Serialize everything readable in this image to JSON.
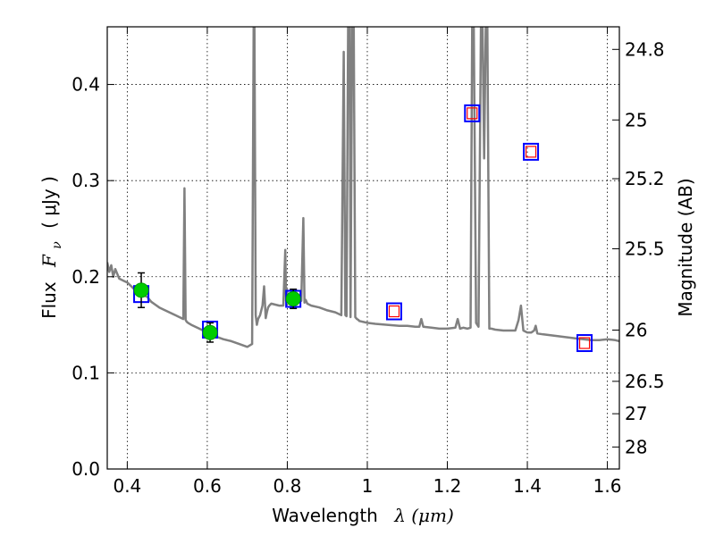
{
  "chart_data": {
    "type": "line",
    "title": "",
    "xlabel": "Wavelength",
    "xlabel_math": "λ (μm)",
    "ylabel": "Flux",
    "ylabel_math": "F",
    "ylabel_sub": "ν",
    "ylabel_units": "( μJy )",
    "y2label": "Magnitude (AB)",
    "xlim": [
      0.35,
      1.63
    ],
    "ylim": [
      0.0,
      0.46
    ],
    "grid": true,
    "x_ticks": [
      0.4,
      0.6,
      0.8,
      1.0,
      1.2,
      1.4,
      1.6
    ],
    "x_tick_labels": [
      "0.4",
      "0.6",
      "0.8",
      "1",
      "1.2",
      "1.4",
      "1.6"
    ],
    "y_ticks": [
      0.0,
      0.1,
      0.2,
      0.3,
      0.4
    ],
    "y_tick_labels": [
      "0.0",
      "0.1",
      "0.2",
      "0.3",
      "0.4"
    ],
    "y2_ticks": [
      {
        "label": "24.8",
        "flux": 0.4365
      },
      {
        "label": "25",
        "flux": 0.3631
      },
      {
        "label": "25.2",
        "flux": 0.302
      },
      {
        "label": "25.5",
        "flux": 0.2291
      },
      {
        "label": "26",
        "flux": 0.1445
      },
      {
        "label": "26.5",
        "flux": 0.0912
      },
      {
        "label": "27",
        "flux": 0.0575
      },
      {
        "label": "28",
        "flux": 0.0229
      }
    ],
    "series": [
      {
        "name": "model spectrum",
        "kind": "line",
        "color": "#808080",
        "x": [
          0.35,
          0.355,
          0.36,
          0.365,
          0.37,
          0.38,
          0.39,
          0.4,
          0.41,
          0.42,
          0.43,
          0.44,
          0.45,
          0.46,
          0.47,
          0.48,
          0.5,
          0.52,
          0.54,
          0.543,
          0.546,
          0.549,
          0.552,
          0.56,
          0.58,
          0.6,
          0.62,
          0.64,
          0.66,
          0.68,
          0.7,
          0.712,
          0.716,
          0.718,
          0.721,
          0.724,
          0.727,
          0.732,
          0.738,
          0.742,
          0.746,
          0.749,
          0.752,
          0.755,
          0.76,
          0.77,
          0.78,
          0.79,
          0.795,
          0.797,
          0.799,
          0.802,
          0.81,
          0.82,
          0.83,
          0.835,
          0.84,
          0.843,
          0.846,
          0.85,
          0.86,
          0.88,
          0.9,
          0.92,
          0.935,
          0.941,
          0.945,
          0.948,
          0.952,
          0.956,
          0.958,
          0.962,
          0.966,
          0.97,
          0.974,
          0.978,
          0.98,
          1.0,
          1.02,
          1.05,
          1.08,
          1.1,
          1.12,
          1.13,
          1.135,
          1.14,
          1.16,
          1.18,
          1.2,
          1.22,
          1.226,
          1.232,
          1.24,
          1.25,
          1.258,
          1.262,
          1.266,
          1.272,
          1.278,
          1.284,
          1.288,
          1.292,
          1.296,
          1.3,
          1.305,
          1.31,
          1.32,
          1.34,
          1.36,
          1.37,
          1.378,
          1.384,
          1.39,
          1.4,
          1.41,
          1.417,
          1.421,
          1.425,
          1.44,
          1.46,
          1.48,
          1.5,
          1.52,
          1.54,
          1.56,
          1.58,
          1.6,
          1.62,
          1.63
        ],
        "y": [
          0.215,
          0.205,
          0.212,
          0.2,
          0.208,
          0.198,
          0.196,
          0.194,
          0.19,
          0.186,
          0.182,
          0.181,
          0.179,
          0.174,
          0.171,
          0.168,
          0.164,
          0.16,
          0.156,
          0.292,
          0.155,
          0.153,
          0.152,
          0.15,
          0.146,
          0.142,
          0.138,
          0.135,
          0.133,
          0.13,
          0.127,
          0.13,
          0.46,
          0.46,
          0.16,
          0.15,
          0.156,
          0.16,
          0.17,
          0.19,
          0.157,
          0.163,
          0.168,
          0.17,
          0.172,
          0.171,
          0.17,
          0.17,
          0.228,
          0.175,
          0.188,
          0.174,
          0.172,
          0.173,
          0.174,
          0.175,
          0.261,
          0.173,
          0.176,
          0.172,
          0.17,
          0.168,
          0.165,
          0.163,
          0.16,
          0.434,
          0.16,
          0.159,
          0.46,
          0.46,
          0.158,
          0.46,
          0.46,
          0.158,
          0.156,
          0.155,
          0.154,
          0.152,
          0.151,
          0.15,
          0.149,
          0.149,
          0.148,
          0.148,
          0.156,
          0.148,
          0.147,
          0.146,
          0.146,
          0.147,
          0.156,
          0.146,
          0.147,
          0.146,
          0.147,
          0.46,
          0.46,
          0.152,
          0.148,
          0.46,
          0.46,
          0.323,
          0.46,
          0.46,
          0.146,
          0.146,
          0.145,
          0.144,
          0.144,
          0.144,
          0.155,
          0.17,
          0.144,
          0.142,
          0.142,
          0.144,
          0.149,
          0.141,
          0.14,
          0.139,
          0.138,
          0.137,
          0.136,
          0.135,
          0.134,
          0.134,
          0.135,
          0.134,
          0.133
        ]
      },
      {
        "name": "model band fluxes",
        "kind": "square",
        "color": "#0000ff",
        "x": [
          0.435,
          0.607,
          0.815,
          1.067,
          1.262,
          1.409,
          1.543
        ],
        "y": [
          0.182,
          0.145,
          0.177,
          0.164,
          0.37,
          0.33,
          0.131
        ]
      },
      {
        "name": "model band fluxes (inner)",
        "kind": "small-square",
        "color": "#ff0000",
        "x": [
          1.067,
          1.262,
          1.409,
          1.543
        ],
        "y": [
          0.164,
          0.37,
          0.33,
          0.131
        ]
      },
      {
        "name": "observed photometry",
        "kind": "circle",
        "color": "#00cc00",
        "x": [
          0.435,
          0.607,
          0.815
        ],
        "y": [
          0.186,
          0.142,
          0.177
        ],
        "y_err_low": [
          0.168,
          0.132,
          0.167
        ],
        "y_err_high": [
          0.204,
          0.152,
          0.187
        ]
      }
    ]
  }
}
